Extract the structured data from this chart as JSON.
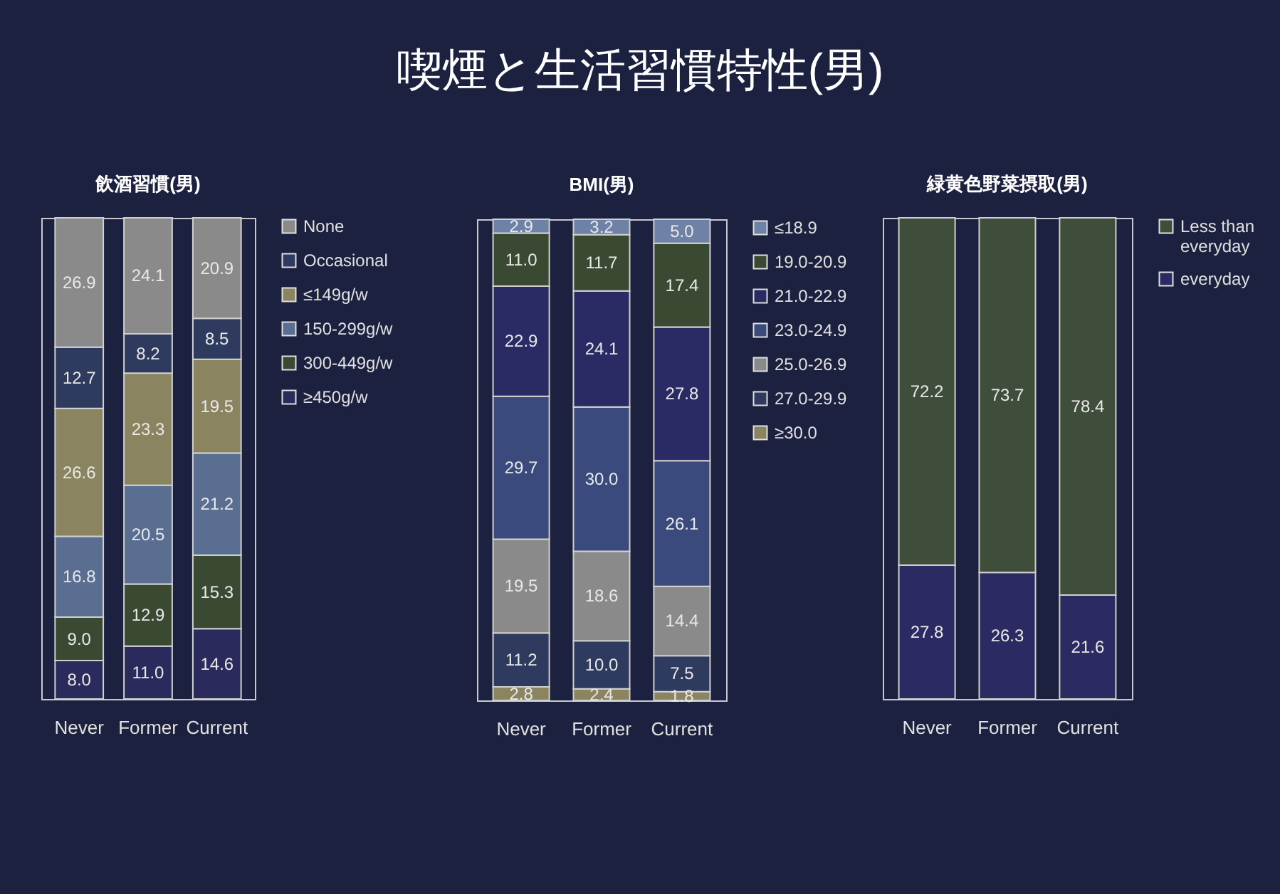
{
  "chart_data": [
    {
      "type": "bar",
      "title": "飲酒習慣(男)",
      "annotations": [
        "喫煙と生活習慣特性(男)"
      ],
      "categories": [
        "Never",
        "Former",
        "Current"
      ],
      "stacked": true,
      "legend": "right",
      "ylim": [
        0,
        100
      ],
      "series": [
        {
          "name": "≥450g/w",
          "color": "#2a2a5c",
          "values": [
            8.0,
            11.0,
            14.6
          ],
          "value_labels": [
            "8.0",
            "11.0",
            "14.6"
          ]
        },
        {
          "name": "300-449g/w",
          "color": "#3a4a32",
          "values": [
            9.0,
            12.9,
            15.3
          ],
          "value_labels": [
            "9.0",
            "12.9",
            "15.3"
          ]
        },
        {
          "name": "150-299g/w",
          "color": "#5a6e92",
          "values": [
            16.8,
            20.5,
            21.2
          ],
          "value_labels": [
            "16.8",
            "20.5",
            "21.2"
          ]
        },
        {
          "name": "≤149g/w",
          "color": "#8a8560",
          "values": [
            26.6,
            23.3,
            19.5
          ],
          "value_labels": [
            "26.6",
            "23.3",
            "19.5"
          ]
        },
        {
          "name": "Occasional",
          "color": "#2e3a5e",
          "values": [
            12.7,
            8.2,
            8.5
          ],
          "value_labels": [
            "12.7",
            "8.2",
            "8.5"
          ]
        },
        {
          "name": "None",
          "color": "#8a8a8a",
          "values": [
            26.9,
            24.1,
            20.9
          ],
          "value_labels": [
            "26.9",
            "24.1",
            "20.9"
          ]
        }
      ]
    },
    {
      "type": "bar",
      "title": "BMI(男)",
      "categories": [
        "Never",
        "Former",
        "Current"
      ],
      "stacked": true,
      "legend": "right",
      "ylim": [
        0,
        100
      ],
      "series": [
        {
          "name": "≥30.0",
          "color": "#8a8560",
          "values": [
            2.8,
            2.4,
            1.8
          ],
          "value_labels": [
            "2.8",
            "2.4",
            "1.8"
          ]
        },
        {
          "name": "27.0-29.9",
          "color": "#2e3a5e",
          "values": [
            11.2,
            10.0,
            7.5
          ],
          "value_labels": [
            "11.2",
            "10.0",
            "7.5"
          ]
        },
        {
          "name": "25.0-26.9",
          "color": "#8a8a8a",
          "values": [
            19.5,
            18.6,
            14.4
          ],
          "value_labels": [
            "19.5",
            "18.6",
            "14.4"
          ]
        },
        {
          "name": "23.0-24.9",
          "color": "#3a4a7c",
          "values": [
            29.7,
            30.0,
            26.1
          ],
          "value_labels": [
            "29.7",
            "30.0",
            "26.1"
          ]
        },
        {
          "name": "21.0-22.9",
          "color": "#2a2a64",
          "values": [
            22.9,
            24.1,
            27.8
          ],
          "value_labels": [
            "22.9",
            "24.1",
            "27.8"
          ]
        },
        {
          "name": "19.0-20.9",
          "color": "#3a4a32",
          "values": [
            11.0,
            11.7,
            17.4
          ],
          "value_labels": [
            "11.0",
            "11.7",
            "17.4"
          ]
        },
        {
          "name": "≤18.9",
          "color": "#6e82a8",
          "values": [
            2.9,
            3.2,
            5.0
          ],
          "value_labels": [
            "2.9",
            "3.2",
            "5.0"
          ]
        }
      ]
    },
    {
      "type": "bar",
      "title": "緑黄色野菜摂取(男)",
      "categories": [
        "Never",
        "Former",
        "Current"
      ],
      "stacked": true,
      "legend": "right",
      "ylim": [
        0,
        100
      ],
      "series": [
        {
          "name": "everyday",
          "color": "#2c2a62",
          "values": [
            27.8,
            26.3,
            21.6
          ],
          "value_labels": [
            "27.8",
            "26.3",
            "21.6"
          ]
        },
        {
          "name": "Less than everyday",
          "color": "#3e4e3a",
          "values": [
            72.2,
            73.7,
            78.4
          ],
          "value_labels": [
            "72.2",
            "73.7",
            "78.4"
          ]
        }
      ]
    }
  ]
}
